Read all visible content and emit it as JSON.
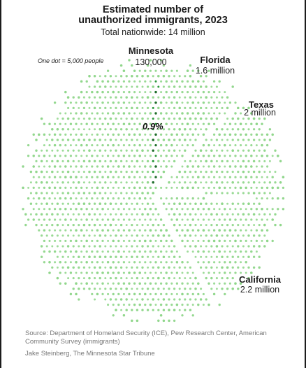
{
  "header": {
    "title_line1": "Estimated number of",
    "title_line2": "unauthorized immigrants, 2023",
    "subtitle": "Total nationwide: 14 million"
  },
  "legend_note": "One dot = 5,000 people",
  "chart_data": {
    "type": "dot-pie",
    "title": "Estimated number of unauthorized immigrants, 2023",
    "subtitle": "Total nationwide: 14 million",
    "total_millions": 14,
    "dot_value_people": 5000,
    "slices": [
      {
        "name": "Minnesota",
        "value_label": "130,000",
        "value": 130000,
        "percent_label": "0.9%"
      },
      {
        "name": "Florida",
        "value_label": "1.6 million",
        "value": 1600000
      },
      {
        "name": "Texas",
        "value_label": "2 million",
        "value": 2000000
      },
      {
        "name": "California",
        "value_label": "2.2 million",
        "value": 2200000
      }
    ],
    "colors": {
      "dots": "#8fd68a",
      "highlight": "#2e9a3d",
      "highlight_dark": "#1f6e2b"
    }
  },
  "footer": {
    "source": "Source: Department of Homeland Security (ICE), Pew Research Center, American Community Survey (immigrants)",
    "credit": "Jake Steinberg, The Minnesota Star Tribune"
  }
}
